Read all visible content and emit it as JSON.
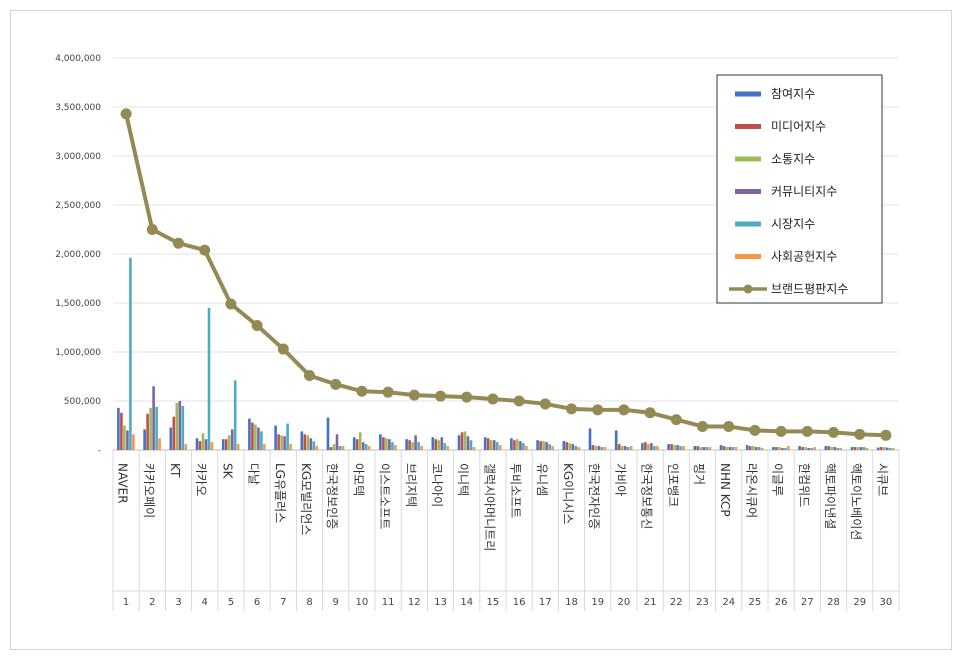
{
  "chart_data": {
    "type": "bar",
    "ylim": [
      0,
      4000000
    ],
    "yticks": [
      "-",
      "500,000",
      "1,000,000",
      "1,500,000",
      "2,000,000",
      "2,500,000",
      "3,000,000",
      "3,500,000",
      "4,000,000"
    ],
    "grid": true,
    "legend_position": "top-right",
    "ranks": [
      "1",
      "2",
      "3",
      "4",
      "5",
      "6",
      "7",
      "8",
      "9",
      "10",
      "11",
      "12",
      "13",
      "14",
      "15",
      "16",
      "17",
      "18",
      "19",
      "20",
      "21",
      "22",
      "23",
      "24",
      "25",
      "26",
      "27",
      "28",
      "29",
      "30"
    ],
    "categories": [
      "NAVER",
      "카카오페이",
      "KT",
      "카카오",
      "SK",
      "다날",
      "LG유플러스",
      "KG모빌리언스",
      "한국정보인증",
      "아모텍",
      "이스트소프트",
      "브리지텍",
      "코나아이",
      "이니텍",
      "갤럭시아머니트리",
      "투비소프트",
      "유니셈",
      "KG이니시스",
      "한국전자인증",
      "가비아",
      "한국정보통신",
      "인포뱅크",
      "핑거",
      "NHN KCP",
      "라온시큐어",
      "이글루",
      "한컴위드",
      "헥토파이낸셜",
      "헥토이노베이션",
      "시큐브"
    ],
    "series": [
      {
        "name": "참여지수",
        "color": "#4472c4",
        "values": [
          430000,
          210000,
          230000,
          120000,
          110000,
          320000,
          250000,
          190000,
          330000,
          130000,
          160000,
          110000,
          130000,
          150000,
          130000,
          120000,
          100000,
          90000,
          220000,
          200000,
          70000,
          60000,
          40000,
          50000,
          50000,
          30000,
          40000,
          40000,
          30000,
          25000
        ]
      },
      {
        "name": "미디어지수",
        "color": "#c0504d",
        "values": [
          380000,
          370000,
          340000,
          90000,
          110000,
          280000,
          160000,
          160000,
          30000,
          110000,
          130000,
          100000,
          110000,
          180000,
          120000,
          100000,
          90000,
          80000,
          50000,
          60000,
          80000,
          60000,
          40000,
          40000,
          40000,
          30000,
          30000,
          40000,
          30000,
          30000
        ]
      },
      {
        "name": "소통지수",
        "color": "#9bbb59",
        "values": [
          250000,
          430000,
          480000,
          170000,
          150000,
          260000,
          150000,
          150000,
          60000,
          180000,
          120000,
          80000,
          100000,
          190000,
          100000,
          110000,
          90000,
          70000,
          40000,
          40000,
          60000,
          50000,
          30000,
          30000,
          40000,
          30000,
          30000,
          30000,
          30000,
          30000
        ]
      },
      {
        "name": "커뮤니티지수",
        "color": "#8064a2",
        "values": [
          200000,
          650000,
          500000,
          110000,
          210000,
          230000,
          140000,
          120000,
          160000,
          80000,
          110000,
          150000,
          130000,
          140000,
          100000,
          90000,
          80000,
          60000,
          40000,
          40000,
          70000,
          50000,
          30000,
          30000,
          30000,
          20000,
          20000,
          30000,
          30000,
          25000
        ]
      },
      {
        "name": "시장지수",
        "color": "#4bacc6",
        "values": [
          1960000,
          440000,
          450000,
          1450000,
          710000,
          190000,
          270000,
          90000,
          40000,
          60000,
          80000,
          80000,
          70000,
          100000,
          80000,
          70000,
          60000,
          40000,
          30000,
          30000,
          40000,
          40000,
          30000,
          30000,
          30000,
          20000,
          20000,
          20000,
          30000,
          20000
        ]
      },
      {
        "name": "사회공헌지수",
        "color": "#f79646",
        "values": [
          160000,
          120000,
          60000,
          80000,
          60000,
          60000,
          60000,
          40000,
          40000,
          40000,
          50000,
          40000,
          40000,
          30000,
          50000,
          40000,
          40000,
          30000,
          30000,
          40000,
          40000,
          40000,
          30000,
          30000,
          20000,
          40000,
          30000,
          20000,
          20000,
          20000
        ]
      },
      {
        "name": "브랜드평판지수",
        "color": "#948a54",
        "type": "line",
        "values": [
          3430000,
          2250000,
          2110000,
          2040000,
          1490000,
          1270000,
          1030000,
          760000,
          670000,
          600000,
          590000,
          560000,
          550000,
          540000,
          520000,
          500000,
          470000,
          420000,
          410000,
          410000,
          380000,
          310000,
          240000,
          240000,
          200000,
          190000,
          190000,
          180000,
          160000,
          150000
        ]
      }
    ]
  }
}
